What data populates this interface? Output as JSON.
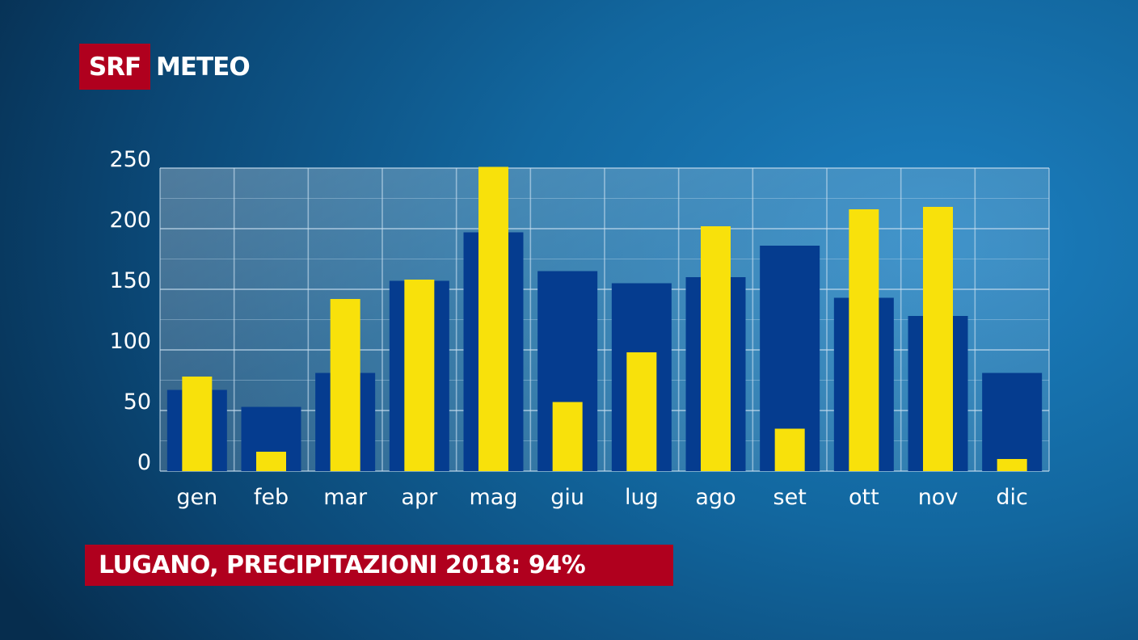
{
  "brand": {
    "logo_box": "SRF",
    "logo_text": "METEO"
  },
  "banner": {
    "text": "LUGANO, PRECIPITAZIONI 2018: 94%"
  },
  "colors": {
    "normal_bar": "#053c8f",
    "actual_bar": "#f8e10b",
    "banner": "#b0001e",
    "grid": "#c9dff0"
  },
  "chart_data": {
    "type": "bar",
    "title": "",
    "xlabel": "",
    "ylabel": "",
    "ylim": [
      0,
      250
    ],
    "yticks": [
      0,
      50,
      100,
      150,
      200,
      250
    ],
    "categories": [
      "gen",
      "feb",
      "mar",
      "apr",
      "mag",
      "giu",
      "lug",
      "ago",
      "set",
      "ott",
      "nov",
      "dic"
    ],
    "series": [
      {
        "values": [
          67,
          53,
          81,
          157,
          197,
          165,
          155,
          160,
          186,
          143,
          128,
          81
        ]
      },
      {
        "values": [
          78,
          16,
          142,
          158,
          251,
          57,
          98,
          202,
          35,
          216,
          218,
          10
        ]
      }
    ],
    "grid": true
  }
}
